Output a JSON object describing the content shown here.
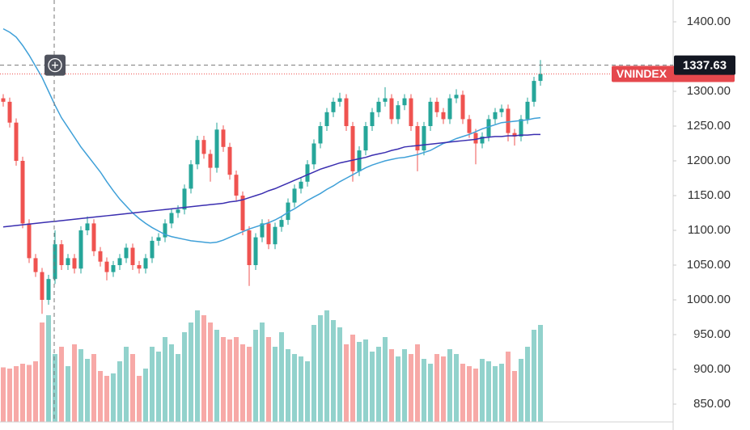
{
  "chart_data": {
    "type": "candlestick",
    "symbol": "VNINDEX",
    "crosshair_price": 1337.63,
    "ylim": [
      850,
      1400
    ],
    "yticks": [
      {
        "value": 1400,
        "label": "1400.00"
      },
      {
        "value": 1300,
        "label": "1300.00"
      },
      {
        "value": 1250,
        "label": "1250.00"
      },
      {
        "value": 1200,
        "label": "1200.00"
      },
      {
        "value": 1150,
        "label": "1150.00"
      },
      {
        "value": 1100,
        "label": "1100.00"
      },
      {
        "value": 1050,
        "label": "1050.00"
      },
      {
        "value": 1000,
        "label": "1000.00"
      },
      {
        "value": 950,
        "label": "950.00"
      },
      {
        "value": 900,
        "label": "900.00"
      },
      {
        "value": 850,
        "label": "850.00"
      }
    ],
    "up_color": "#26a69a",
    "down_color": "#ef5350",
    "open": [
      1290,
      1285,
      1255,
      1200,
      1110,
      1060,
      1040,
      1000,
      1030,
      1080,
      1050,
      1060,
      1045,
      1100,
      1110,
      1070,
      1055,
      1040,
      1050,
      1060,
      1075,
      1050,
      1045,
      1060,
      1085,
      1090,
      1110,
      1125,
      1130,
      1160,
      1195,
      1230,
      1210,
      1190,
      1245,
      1220,
      1180,
      1150,
      1100,
      1050,
      1090,
      1110,
      1080,
      1105,
      1115,
      1140,
      1160,
      1170,
      1195,
      1225,
      1250,
      1270,
      1285,
      1290,
      1250,
      1185,
      1215,
      1250,
      1270,
      1285,
      1290,
      1260,
      1280,
      1290,
      1250,
      1215,
      1250,
      1285,
      1270,
      1260,
      1290,
      1295,
      1260,
      1240,
      1225,
      1235,
      1260,
      1270,
      1275,
      1240,
      1235,
      1260,
      1285,
      1315
    ],
    "high": [
      1296,
      1291,
      1261,
      1206,
      1116,
      1066,
      1046,
      1036,
      1100,
      1086,
      1066,
      1066,
      1106,
      1120,
      1116,
      1076,
      1061,
      1056,
      1066,
      1081,
      1081,
      1056,
      1066,
      1091,
      1096,
      1116,
      1131,
      1136,
      1166,
      1201,
      1236,
      1236,
      1216,
      1255,
      1251,
      1226,
      1186,
      1156,
      1106,
      1096,
      1116,
      1116,
      1111,
      1121,
      1146,
      1166,
      1176,
      1201,
      1231,
      1256,
      1276,
      1291,
      1298,
      1296,
      1256,
      1221,
      1256,
      1276,
      1291,
      1306,
      1296,
      1286,
      1296,
      1296,
      1256,
      1256,
      1291,
      1291,
      1276,
      1296,
      1303,
      1301,
      1266,
      1246,
      1241,
      1266,
      1276,
      1281,
      1281,
      1246,
      1266,
      1291,
      1321,
      1345
    ],
    "low": [
      1278,
      1248,
      1193,
      1103,
      1053,
      1033,
      980,
      993,
      1023,
      1043,
      1043,
      1038,
      1038,
      1093,
      1063,
      1048,
      1028,
      1033,
      1043,
      1053,
      1043,
      1038,
      1038,
      1053,
      1078,
      1083,
      1103,
      1118,
      1123,
      1153,
      1188,
      1203,
      1170,
      1183,
      1213,
      1173,
      1143,
      1093,
      1020,
      1043,
      1083,
      1073,
      1073,
      1098,
      1108,
      1133,
      1153,
      1163,
      1188,
      1218,
      1243,
      1263,
      1278,
      1243,
      1170,
      1178,
      1208,
      1243,
      1263,
      1278,
      1253,
      1253,
      1273,
      1243,
      1185,
      1208,
      1243,
      1263,
      1253,
      1253,
      1283,
      1253,
      1233,
      1195,
      1218,
      1228,
      1253,
      1263,
      1228,
      1222,
      1228,
      1253,
      1278,
      1308
    ],
    "close": [
      1285,
      1255,
      1200,
      1110,
      1060,
      1040,
      1000,
      1030,
      1080,
      1050,
      1060,
      1045,
      1100,
      1110,
      1070,
      1055,
      1040,
      1050,
      1060,
      1075,
      1050,
      1045,
      1060,
      1085,
      1090,
      1110,
      1125,
      1130,
      1160,
      1195,
      1230,
      1210,
      1190,
      1245,
      1220,
      1180,
      1150,
      1100,
      1050,
      1090,
      1110,
      1080,
      1105,
      1115,
      1140,
      1160,
      1170,
      1195,
      1225,
      1250,
      1270,
      1285,
      1290,
      1250,
      1185,
      1215,
      1250,
      1270,
      1285,
      1290,
      1260,
      1280,
      1290,
      1250,
      1215,
      1250,
      1285,
      1270,
      1260,
      1290,
      1295,
      1260,
      1240,
      1225,
      1235,
      1260,
      1270,
      1275,
      1240,
      1235,
      1260,
      1285,
      1315,
      1325
    ],
    "series": [
      {
        "color": "#3fa0d8",
        "values": [
          1390,
          1385,
          1378,
          1366,
          1352,
          1336,
          1320,
          1300,
          1280,
          1262,
          1248,
          1234,
          1220,
          1208,
          1196,
          1184,
          1170,
          1157,
          1145,
          1135,
          1125,
          1117,
          1110,
          1104,
          1099,
          1094,
          1091,
          1089,
          1087,
          1085,
          1084,
          1083,
          1082,
          1083,
          1086,
          1090,
          1094,
          1098,
          1102,
          1105,
          1108,
          1111,
          1115,
          1120,
          1126,
          1131,
          1137,
          1143,
          1148,
          1153,
          1159,
          1164,
          1170,
          1175,
          1180,
          1185,
          1190,
          1194,
          1197,
          1200,
          1202,
          1204,
          1205,
          1207,
          1209,
          1212,
          1215,
          1220,
          1225,
          1228,
          1232,
          1235,
          1238,
          1242,
          1246,
          1249,
          1252,
          1255,
          1256,
          1257,
          1258,
          1259,
          1261,
          1262
        ]
      },
      {
        "color": "#3a2eb0",
        "values": [
          1105,
          1106,
          1107,
          1108,
          1109,
          1110,
          1111,
          1112,
          1113,
          1114,
          1115,
          1116,
          1117,
          1118,
          1119,
          1120,
          1121,
          1122,
          1123,
          1124,
          1125,
          1126,
          1127,
          1128,
          1129,
          1130,
          1131,
          1132,
          1133,
          1134,
          1135,
          1136,
          1137,
          1138,
          1139,
          1141,
          1142,
          1144,
          1147,
          1150,
          1153,
          1157,
          1160,
          1164,
          1168,
          1172,
          1176,
          1180,
          1184,
          1188,
          1191,
          1194,
          1197,
          1199,
          1201,
          1203,
          1205,
          1208,
          1210,
          1212,
          1215,
          1217,
          1220,
          1221,
          1222,
          1223,
          1224,
          1225,
          1226,
          1227,
          1228,
          1229,
          1230,
          1231,
          1233,
          1234,
          1235,
          1235,
          1236,
          1236,
          1237,
          1237,
          1238,
          1238
        ]
      }
    ],
    "volume": {
      "vlim": [
        0,
        1000
      ],
      "values": [
        450,
        440,
        460,
        480,
        470,
        500,
        820,
        880,
        560,
        620,
        460,
        640,
        600,
        520,
        560,
        420,
        380,
        400,
        500,
        620,
        560,
        380,
        440,
        620,
        580,
        700,
        640,
        560,
        740,
        820,
        920,
        880,
        820,
        760,
        700,
        680,
        700,
        640,
        620,
        760,
        820,
        700,
        620,
        740,
        600,
        560,
        540,
        500,
        800,
        880,
        920,
        840,
        780,
        640,
        720,
        660,
        680,
        580,
        620,
        700,
        600,
        540,
        600,
        560,
        640,
        520,
        480,
        560,
        540,
        600,
        560,
        480,
        460,
        440,
        520,
        500,
        460,
        480,
        580,
        420,
        520,
        620,
        760,
        800
      ]
    }
  }
}
